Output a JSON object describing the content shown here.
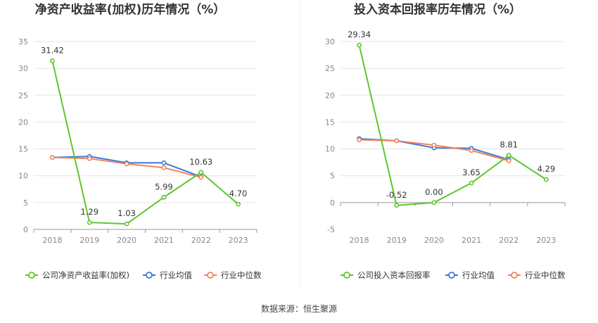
{
  "source": "数据来源：恒生聚源",
  "chart_data": [
    {
      "type": "line",
      "title": "净资产收益率(加权)历年情况（%）",
      "categories": [
        "2018",
        "2019",
        "2020",
        "2021",
        "2022",
        "2023"
      ],
      "ylim": [
        0,
        35
      ],
      "yticks": [
        0,
        5,
        10,
        15,
        20,
        25,
        30,
        35
      ],
      "grid": true,
      "legend_position": "bottom",
      "series": [
        {
          "name": "公司净资产收益率(加权)",
          "color": "#5dc72e",
          "values": [
            31.42,
            1.29,
            1.03,
            5.99,
            10.63,
            4.7
          ],
          "labels": [
            "31.42",
            "1.29",
            "1.03",
            "5.99",
            "10.63",
            "4.70"
          ]
        },
        {
          "name": "行业均值",
          "color": "#3d78d8",
          "values": [
            13.4,
            13.6,
            12.4,
            12.4,
            9.8,
            null
          ]
        },
        {
          "name": "行业中位数",
          "color": "#f0845e",
          "values": [
            13.4,
            13.2,
            12.2,
            11.5,
            9.7,
            null
          ]
        }
      ]
    },
    {
      "type": "line",
      "title": "投入资本回报率历年情况（%）",
      "categories": [
        "2018",
        "2019",
        "2020",
        "2021",
        "2022",
        "2023"
      ],
      "ylim": [
        -5,
        30
      ],
      "yticks": [
        -5,
        0,
        5,
        10,
        15,
        20,
        25,
        30
      ],
      "grid": true,
      "legend_position": "bottom",
      "series": [
        {
          "name": "公司投入资本回报率",
          "color": "#5dc72e",
          "values": [
            29.34,
            -0.52,
            0.0,
            3.65,
            8.81,
            4.29
          ],
          "labels": [
            "29.34",
            "-0.52",
            "0.00",
            "3.65",
            "8.81",
            "4.29"
          ]
        },
        {
          "name": "行业均值",
          "color": "#3d78d8",
          "values": [
            11.9,
            11.5,
            10.2,
            10.1,
            8.0,
            null
          ]
        },
        {
          "name": "行业中位数",
          "color": "#f0845e",
          "values": [
            11.7,
            11.5,
            10.7,
            9.7,
            7.8,
            null
          ]
        }
      ]
    }
  ]
}
